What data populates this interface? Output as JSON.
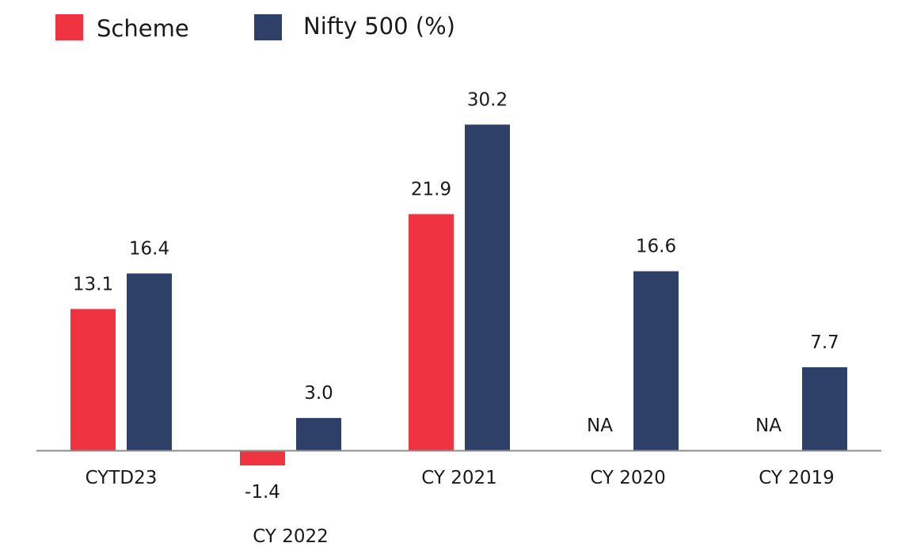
{
  "chart_data": {
    "type": "bar",
    "categories": [
      "CYTD23",
      "CY 2022",
      "CY 2021",
      "CY 2020",
      "CY 2019"
    ],
    "series": [
      {
        "name": "Scheme",
        "color": "#EF3340",
        "values": [
          13.1,
          -1.4,
          21.9,
          null,
          null
        ],
        "labels": [
          "13.1",
          "-1.4",
          "21.9",
          "NA",
          "NA"
        ]
      },
      {
        "name": "Nifty 500 (%)",
        "color": "#2E4068",
        "values": [
          16.4,
          3.0,
          30.2,
          16.6,
          7.7
        ],
        "labels": [
          "16.4",
          "3.0",
          "30.2",
          "16.6",
          "7.7"
        ]
      }
    ],
    "ylim": [
      -1.4,
      30.2
    ],
    "grid": false,
    "legend": "top-left",
    "baseline_color": "#8C8C8C"
  }
}
